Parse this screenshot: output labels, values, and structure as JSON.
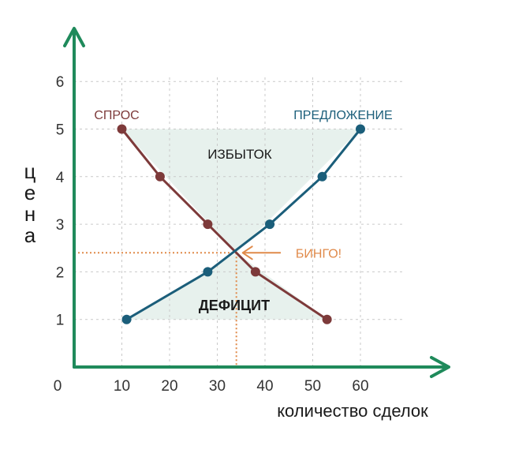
{
  "chart_data": {
    "type": "line",
    "title": "",
    "xlabel": "количество сделок",
    "ylabel": [
      "ц",
      "е",
      "н",
      "а"
    ],
    "xlim": [
      0,
      60
    ],
    "ylim": [
      0,
      6
    ],
    "x_ticks": [
      "0",
      "10",
      "20",
      "30",
      "40",
      "50",
      "60"
    ],
    "y_ticks": [
      "1",
      "2",
      "3",
      "4",
      "5",
      "6"
    ],
    "grid": true,
    "colors": {
      "axis": "#1f8a5b",
      "demand": "#7d3a3a",
      "supply": "#1b5e7a",
      "annotation": "#e08a4a",
      "shade": "#e7f1ed",
      "grid": "#c9c9c9"
    },
    "series": [
      {
        "name": "СПРОС",
        "points": [
          {
            "x": 10,
            "y": 5
          },
          {
            "x": 18,
            "y": 4
          },
          {
            "x": 28,
            "y": 3
          },
          {
            "x": 38,
            "y": 2
          },
          {
            "x": 53,
            "y": 1
          }
        ]
      },
      {
        "name": "ПРЕДЛОЖЕНИЕ",
        "points": [
          {
            "x": 11,
            "y": 1
          },
          {
            "x": 28,
            "y": 2
          },
          {
            "x": 41,
            "y": 3
          },
          {
            "x": 52,
            "y": 4
          },
          {
            "x": 60,
            "y": 5
          }
        ]
      }
    ],
    "equilibrium": {
      "x": 34,
      "y": 2.4
    },
    "annotations": {
      "surplus": "ИЗБЫТОК",
      "shortage": "ДЕФИЦИТ",
      "bingo": "БИНГО!"
    }
  }
}
